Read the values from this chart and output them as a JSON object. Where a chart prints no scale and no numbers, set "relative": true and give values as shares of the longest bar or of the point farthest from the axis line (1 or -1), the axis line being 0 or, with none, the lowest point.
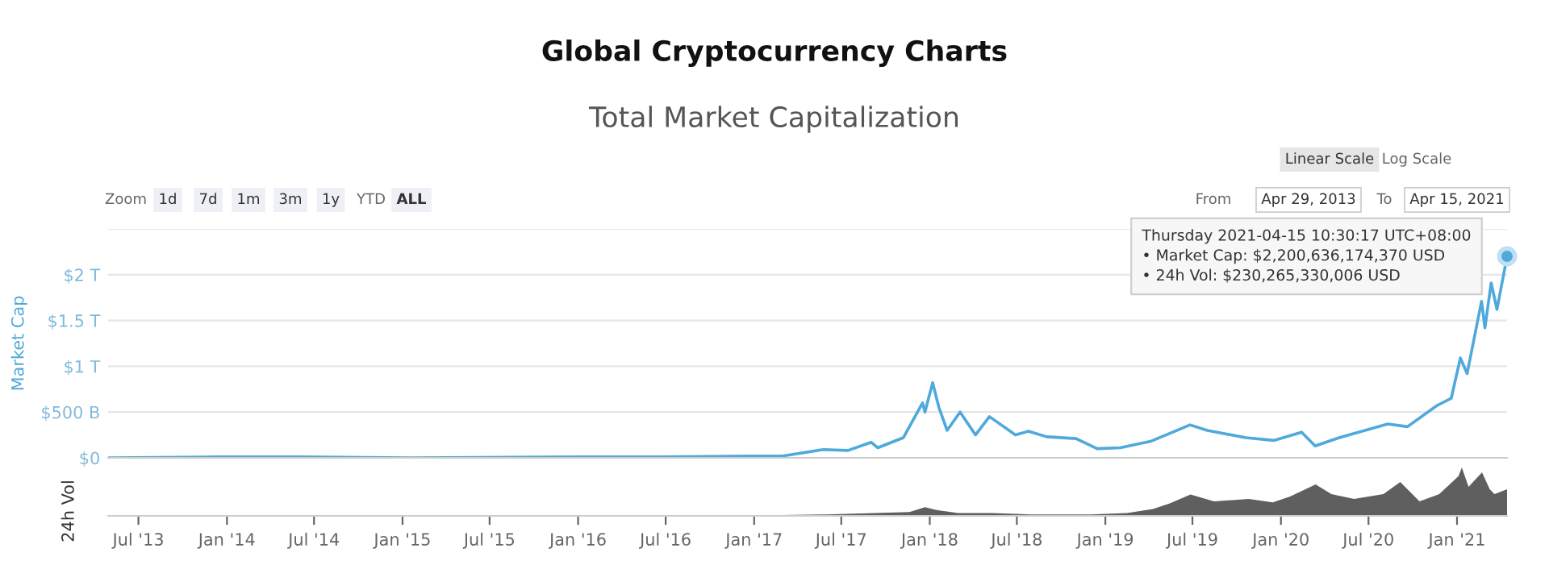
{
  "chart_data": [
    {
      "type": "line",
      "title": "Global Cryptocurrency Charts",
      "subtitle": "Total Market Capitalization",
      "ylabel": "Market Cap",
      "x": [
        "2013-04-29",
        "2013-12-04",
        "2014-06-01",
        "2015-01-15",
        "2016-01-01",
        "2016-06-15",
        "2017-01-01",
        "2017-03-01",
        "2017-05-25",
        "2017-07-15",
        "2017-09-01",
        "2017-09-15",
        "2017-11-07",
        "2017-12-17",
        "2017-12-22",
        "2018-01-07",
        "2018-01-20",
        "2018-02-06",
        "2018-03-05",
        "2018-04-06",
        "2018-05-05",
        "2018-06-28",
        "2018-07-25",
        "2018-09-01",
        "2018-11-01",
        "2018-12-15",
        "2019-02-01",
        "2019-04-05",
        "2019-06-26",
        "2019-08-01",
        "2019-10-20",
        "2019-12-17",
        "2020-02-13",
        "2020-03-12",
        "2020-05-01",
        "2020-08-10",
        "2020-09-20",
        "2020-11-20",
        "2020-12-20",
        "2021-01-08",
        "2021-01-22",
        "2021-02-21",
        "2021-02-28",
        "2021-03-13",
        "2021-03-25",
        "2021-04-15"
      ],
      "series": [
        {
          "color": "#4fa9da",
          "values": [
            0,
            10000000000,
            10000000000,
            0,
            10000000000,
            10000000000,
            20000000000,
            20000000000,
            90000000000,
            80000000000,
            170000000000,
            110000000000,
            220000000000,
            600000000000,
            500000000000,
            820000000000,
            550000000000,
            300000000000,
            500000000000,
            250000000000,
            450000000000,
            250000000000,
            290000000000,
            230000000000,
            210000000000,
            100000000000,
            110000000000,
            180000000000,
            360000000000,
            300000000000,
            220000000000,
            190000000000,
            280000000000,
            130000000000,
            220000000000,
            370000000000,
            340000000000,
            570000000000,
            650000000000,
            1090000000000,
            920000000000,
            1710000000000,
            1420000000000,
            1910000000000,
            1620000000000,
            2200636174370
          ]
        }
      ],
      "xlim": [
        "2013-04-29",
        "2021-04-15"
      ],
      "ylim": [
        0,
        2500000000000
      ],
      "yticks": [
        {
          "value": 0,
          "label": "$0"
        },
        {
          "value": 500000000000,
          "label": "$500 B"
        },
        {
          "value": 1000000000000,
          "label": "$1 T"
        },
        {
          "value": 1500000000000,
          "label": "$1.5 T"
        },
        {
          "value": 2000000000000,
          "label": "$2 T"
        },
        {
          "value": 2500000000000,
          "label": null
        }
      ],
      "grid": "y",
      "tick_labels": "y",
      "marker": "none",
      "line_style": "solid",
      "legend": false,
      "annotations": [
        "Zoom",
        "1d",
        "7d",
        "1m",
        "3m",
        "1y",
        "YTD",
        "ALL",
        "Linear Scale",
        "Log Scale",
        "From",
        "Apr 29, 2013",
        "To",
        "Apr 15, 2021",
        {
          "text": "Thursday 2021-04-15 10:30:17 UTC+08:00\n• Market Cap: $2,200,636,174,370 USD\n• 24h Vol: $230,265,330,006 USD",
          "x": "2021-04-15",
          "y": 2200636174370
        }
      ]
    },
    {
      "type": "area",
      "relative": true,
      "ylabel": "24h Vol",
      "x": [
        "2013-04-29",
        "2017-01-01",
        "2017-06-01",
        "2017-11-20",
        "2017-12-22",
        "2018-01-15",
        "2018-03-01",
        "2018-05-10",
        "2018-08-01",
        "2018-12-01",
        "2019-02-15",
        "2019-04-10",
        "2019-05-15",
        "2019-06-27",
        "2019-08-15",
        "2019-10-26",
        "2019-12-15",
        "2020-01-20",
        "2020-03-13",
        "2020-04-15",
        "2020-06-01",
        "2020-08-01",
        "2020-09-05",
        "2020-10-15",
        "2020-11-25",
        "2021-01-04",
        "2021-01-11",
        "2021-01-25",
        "2021-02-22",
        "2021-03-10",
        "2021-03-20",
        "2021-04-15"
      ],
      "series": [
        {
          "color": "#5f5f5f",
          "values": [
            0,
            0.01,
            0.03,
            0.08,
            0.18,
            0.12,
            0.06,
            0.06,
            0.03,
            0.03,
            0.06,
            0.14,
            0.26,
            0.44,
            0.3,
            0.35,
            0.28,
            0.4,
            0.65,
            0.45,
            0.35,
            0.45,
            0.7,
            0.3,
            0.45,
            0.82,
            1,
            0.6,
            0.9,
            0.55,
            0.45,
            0.55
          ]
        }
      ],
      "xlim": [
        "2013-04-29",
        "2021-04-15"
      ],
      "xticks": [
        {
          "value": "2013-07-01",
          "label": "Jul '13"
        },
        {
          "value": "2014-01-01",
          "label": "Jan '14"
        },
        {
          "value": "2014-07-01",
          "label": "Jul '14"
        },
        {
          "value": "2015-01-01",
          "label": "Jan '15"
        },
        {
          "value": "2015-07-01",
          "label": "Jul '15"
        },
        {
          "value": "2016-01-01",
          "label": "Jan '16"
        },
        {
          "value": "2016-07-01",
          "label": "Jul '16"
        },
        {
          "value": "2017-01-01",
          "label": "Jan '17"
        },
        {
          "value": "2017-07-01",
          "label": "Jul '17"
        },
        {
          "value": "2018-01-01",
          "label": "Jan '18"
        },
        {
          "value": "2018-07-01",
          "label": "Jul '18"
        },
        {
          "value": "2019-01-01",
          "label": "Jan '19"
        },
        {
          "value": "2019-07-01",
          "label": "Jul '19"
        },
        {
          "value": "2020-01-01",
          "label": "Jan '20"
        },
        {
          "value": "2020-07-01",
          "label": "Jul '20"
        },
        {
          "value": "2021-01-01",
          "label": "Jan '21"
        }
      ],
      "tick_labels": "x",
      "grid": false,
      "legend": false
    }
  ]
}
